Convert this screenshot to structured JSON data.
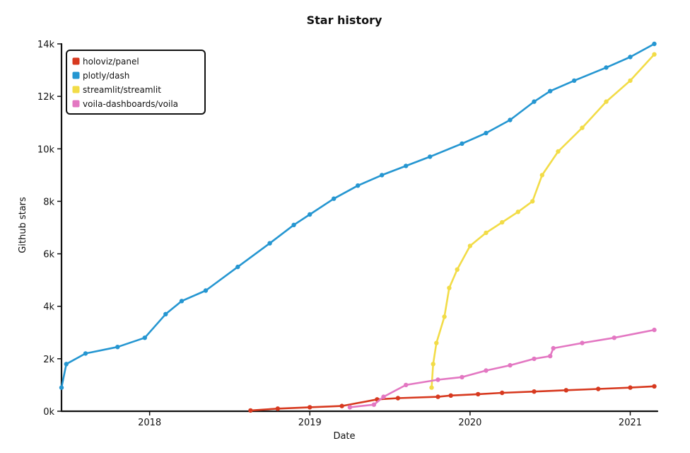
{
  "chart_data": {
    "type": "line",
    "title": "Star history",
    "xlabel": "Date",
    "ylabel": "Github stars",
    "xlim": [
      2017.45,
      2021.17
    ],
    "ylim": [
      0,
      14000
    ],
    "x_ticks": [
      2018,
      2019,
      2020,
      2021
    ],
    "x_tick_labels": [
      "2018",
      "2019",
      "2020",
      "2021"
    ],
    "y_ticks": [
      0,
      2000,
      4000,
      6000,
      8000,
      10000,
      12000,
      14000
    ],
    "y_tick_labels": [
      "0k",
      "2k",
      "4k",
      "6k",
      "8k",
      "10k",
      "12k",
      "14k"
    ],
    "legend": {
      "position": "top-left"
    },
    "grid": false,
    "series": [
      {
        "name": "holoviz/panel",
        "color": "#d7391f",
        "x": [
          2018.63,
          2018.8,
          2019.0,
          2019.2,
          2019.42,
          2019.55,
          2019.8,
          2019.88,
          2020.05,
          2020.2,
          2020.4,
          2020.6,
          2020.8,
          2021.0,
          2021.15
        ],
        "y": [
          30,
          100,
          150,
          200,
          450,
          500,
          550,
          600,
          650,
          700,
          750,
          800,
          850,
          900,
          950
        ]
      },
      {
        "name": "plotly/dash",
        "color": "#2596d1",
        "x": [
          2017.45,
          2017.48,
          2017.6,
          2017.8,
          2017.97,
          2018.1,
          2018.2,
          2018.35,
          2018.55,
          2018.75,
          2018.9,
          2019.0,
          2019.15,
          2019.3,
          2019.45,
          2019.6,
          2019.75,
          2019.95,
          2020.1,
          2020.25,
          2020.4,
          2020.5,
          2020.65,
          2020.85,
          2021.0,
          2021.15
        ],
        "y": [
          900,
          1800,
          2200,
          2450,
          2800,
          3700,
          4200,
          4600,
          5500,
          6400,
          7100,
          7500,
          8100,
          8600,
          9000,
          9350,
          9700,
          10200,
          10600,
          11100,
          11800,
          12200,
          12600,
          13100,
          13500,
          14000
        ]
      },
      {
        "name": "streamlit/streamlit",
        "color": "#f2dc47",
        "x": [
          2019.76,
          2019.77,
          2019.79,
          2019.84,
          2019.87,
          2019.92,
          2020.0,
          2020.1,
          2020.2,
          2020.3,
          2020.39,
          2020.45,
          2020.55,
          2020.7,
          2020.85,
          2021.0,
          2021.15
        ],
        "y": [
          900,
          1800,
          2600,
          3600,
          4700,
          5400,
          6300,
          6800,
          7200,
          7600,
          8000,
          9000,
          9900,
          10800,
          11800,
          12600,
          13600
        ]
      },
      {
        "name": "voila-dashboards/voila",
        "color": "#e377c2",
        "x": [
          2019.25,
          2019.4,
          2019.46,
          2019.6,
          2019.8,
          2019.95,
          2020.1,
          2020.25,
          2020.4,
          2020.5,
          2020.52,
          2020.7,
          2020.9,
          2021.15
        ],
        "y": [
          150,
          250,
          550,
          1000,
          1200,
          1300,
          1550,
          1750,
          2000,
          2100,
          2400,
          2600,
          2800,
          3100
        ]
      }
    ]
  }
}
